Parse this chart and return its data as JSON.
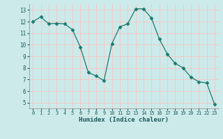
{
  "x": [
    0,
    1,
    2,
    3,
    4,
    5,
    6,
    7,
    8,
    9,
    10,
    11,
    12,
    13,
    14,
    15,
    16,
    17,
    18,
    19,
    20,
    21,
    22,
    23
  ],
  "y": [
    12.0,
    12.4,
    11.8,
    11.85,
    11.8,
    11.3,
    9.8,
    7.6,
    7.3,
    6.9,
    10.1,
    11.55,
    11.8,
    13.1,
    13.1,
    12.3,
    10.5,
    9.2,
    8.4,
    8.0,
    7.2,
    6.8,
    6.7,
    4.85
  ],
  "line_color": "#1a7a6e",
  "marker": "D",
  "marker_size": 2.5,
  "bg_color": "#cdeaea",
  "grid_major_color": "#f2c8c8",
  "grid_minor_color": "#e8e8f8",
  "xlabel": "Humidex (Indice chaleur)",
  "xlabel_style": "bold",
  "xlim": [
    -0.5,
    23.5
  ],
  "ylim": [
    4.5,
    13.5
  ],
  "yticks": [
    5,
    6,
    7,
    8,
    9,
    10,
    11,
    12,
    13
  ],
  "xticks": [
    0,
    1,
    2,
    3,
    4,
    5,
    6,
    7,
    8,
    9,
    10,
    11,
    12,
    13,
    14,
    15,
    16,
    17,
    18,
    19,
    20,
    21,
    22,
    23
  ]
}
